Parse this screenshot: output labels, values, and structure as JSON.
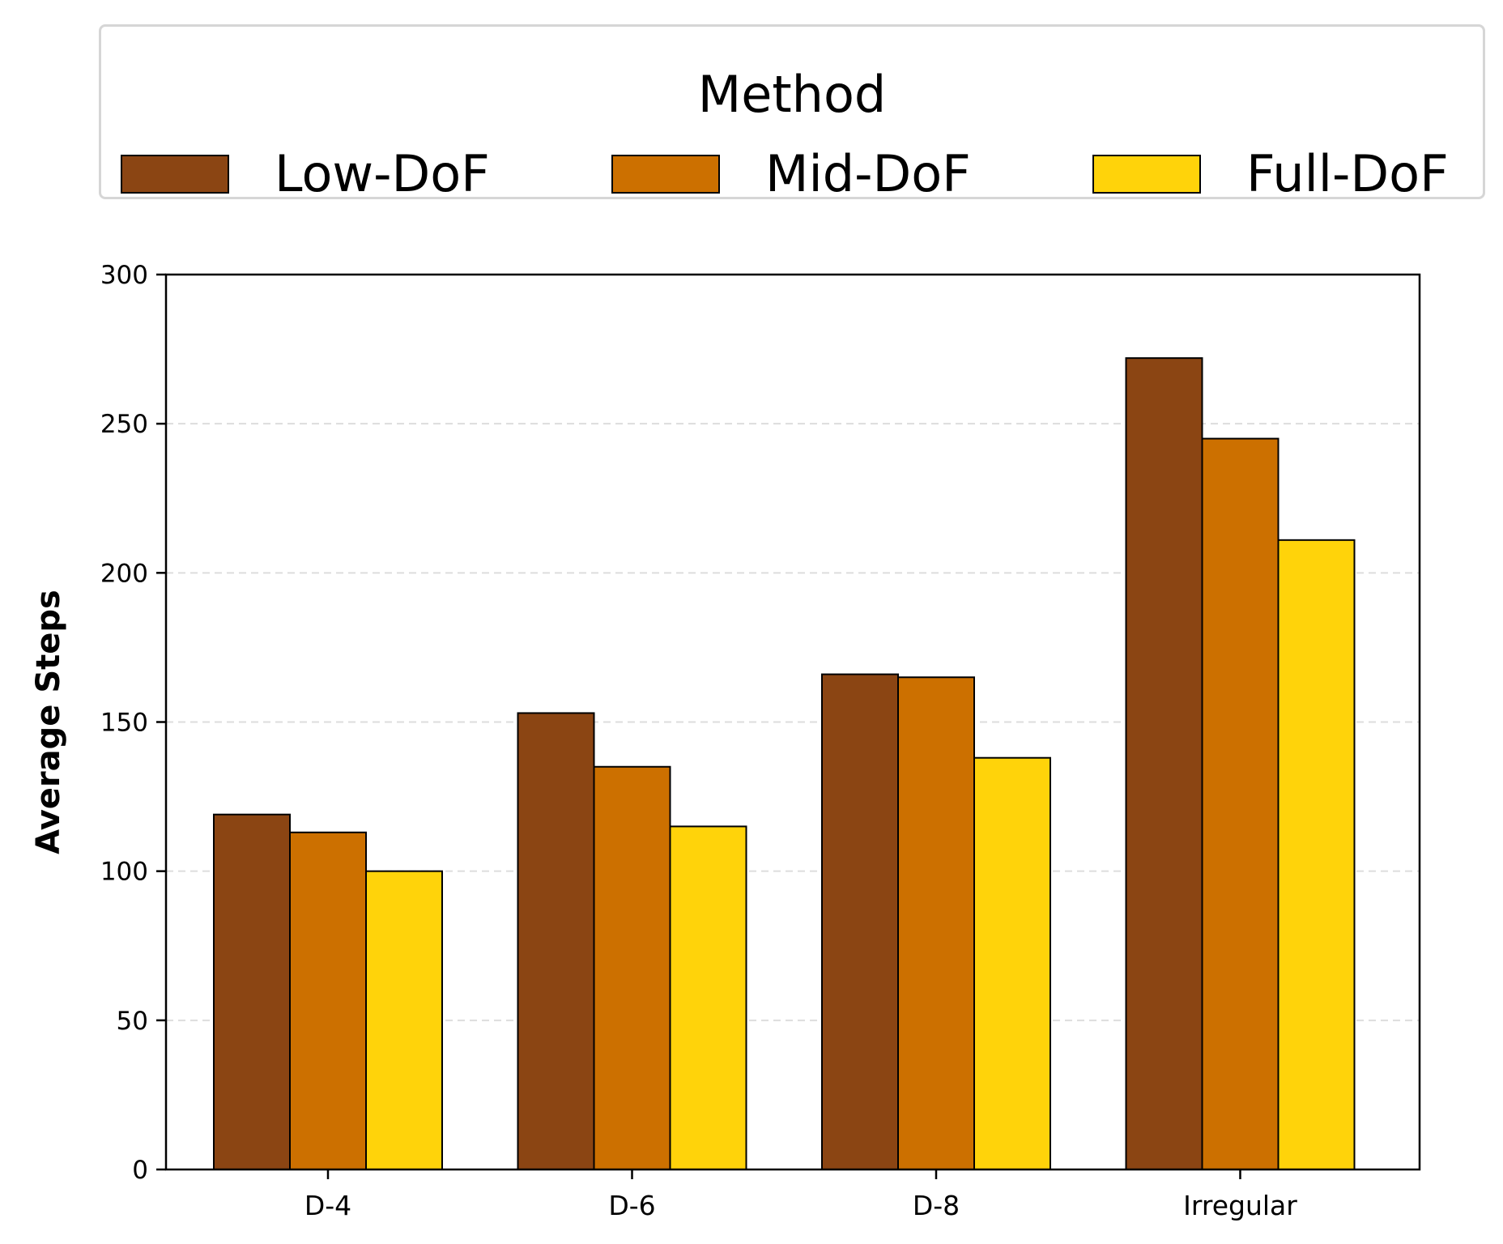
{
  "legend": {
    "title": "Method"
  },
  "chart_data": {
    "type": "bar",
    "categories": [
      "D-4",
      "D-6",
      "D-8",
      "Irregular"
    ],
    "series": [
      {
        "name": "Low-DoF",
        "color": "#8B4513",
        "values": [
          119,
          153,
          166,
          272
        ]
      },
      {
        "name": "Mid-DoF",
        "color": "#CC7000",
        "values": [
          113,
          135,
          165,
          245
        ]
      },
      {
        "name": "Full-DoF",
        "color": "#FFD30A",
        "values": [
          100,
          115,
          138,
          211
        ]
      }
    ],
    "xlabel": "",
    "ylabel": "Average Steps",
    "ylim": [
      0,
      300
    ],
    "yticks": [
      "0",
      "50",
      "100",
      "150",
      "200",
      "250",
      "300"
    ],
    "grid": "horizontal dashed",
    "legend_position": "top"
  }
}
